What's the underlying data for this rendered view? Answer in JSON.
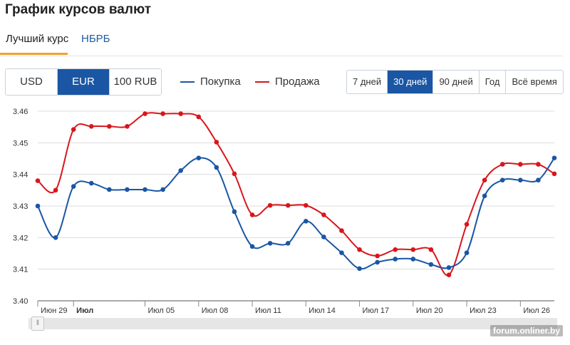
{
  "page": {
    "title": "График курсов валют"
  },
  "tabs": [
    {
      "label": "Лучший курс",
      "active": true
    },
    {
      "label": "НБРБ",
      "active": false
    }
  ],
  "currencies": [
    {
      "label": "USD",
      "active": false
    },
    {
      "label": "EUR",
      "active": true
    },
    {
      "label": "100 RUB",
      "active": false
    }
  ],
  "legend": {
    "buy": "Покупка",
    "sell": "Продажа"
  },
  "periods": [
    {
      "label": "7 дней",
      "active": false
    },
    {
      "label": "30 дней",
      "active": true
    },
    {
      "label": "90 дней",
      "active": false
    },
    {
      "label": "Год",
      "active": false
    },
    {
      "label": "Всё время",
      "active": false
    }
  ],
  "colors": {
    "accent": "#1a56a4",
    "buy": "#1a56a4",
    "sell": "#d9161c",
    "tab_underline": "#f0a030",
    "grid": "#dcdcdc"
  },
  "scroll_handle_icon": "grip-icon",
  "watermark": "forum.onliner.by",
  "chart_data": {
    "type": "line",
    "ylim": [
      3.4,
      3.46
    ],
    "y_ticks": [
      "3.46",
      "3.45",
      "3.44",
      "3.43",
      "3.42",
      "3.41",
      "3.40"
    ],
    "x_ticks": [
      {
        "label": "Июн 29",
        "day": 0,
        "bold": false
      },
      {
        "label": "Июл",
        "day": 2,
        "bold": true
      },
      {
        "label": "Июл 05",
        "day": 6,
        "bold": false
      },
      {
        "label": "Июл 08",
        "day": 9,
        "bold": false
      },
      {
        "label": "Июл 11",
        "day": 12,
        "bold": false
      },
      {
        "label": "Июл 14",
        "day": 15,
        "bold": false
      },
      {
        "label": "Июл 17",
        "day": 18,
        "bold": false
      },
      {
        "label": "Июл 20",
        "day": 21,
        "bold": false
      },
      {
        "label": "Июл 23",
        "day": 24,
        "bold": false
      },
      {
        "label": "Июл 26",
        "day": 27,
        "bold": false
      }
    ],
    "x_range": [
      0,
      28.9
    ],
    "grid": true,
    "series": [
      {
        "name": "Покупка",
        "color": "#1a56a4",
        "points": [
          [
            0,
            3.43
          ],
          [
            1,
            3.42
          ],
          [
            2,
            3.4362
          ],
          [
            3,
            3.4372
          ],
          [
            4,
            3.4352
          ],
          [
            5,
            3.4352
          ],
          [
            6,
            3.4352
          ],
          [
            7,
            3.4352
          ],
          [
            8,
            3.4412
          ],
          [
            9,
            3.4452
          ],
          [
            10,
            3.4422
          ],
          [
            11,
            3.4282
          ],
          [
            12,
            3.4172
          ],
          [
            13,
            3.4182
          ],
          [
            14,
            3.4182
          ],
          [
            15,
            3.4252
          ],
          [
            16,
            3.4202
          ],
          [
            17,
            3.4152
          ],
          [
            18,
            3.4102
          ],
          [
            19,
            3.4122
          ],
          [
            20,
            3.4132
          ],
          [
            21,
            3.4132
          ],
          [
            22,
            3.4115
          ],
          [
            23,
            3.4105
          ],
          [
            24,
            3.4152
          ],
          [
            25,
            3.4332
          ],
          [
            26,
            3.4382
          ],
          [
            27,
            3.4382
          ],
          [
            28,
            3.4382
          ],
          [
            28.9,
            3.4452
          ]
        ]
      },
      {
        "name": "Продажа",
        "color": "#d9161c",
        "points": [
          [
            0,
            3.438
          ],
          [
            1,
            3.435
          ],
          [
            2,
            3.4542
          ],
          [
            3,
            3.4552
          ],
          [
            4,
            3.4552
          ],
          [
            5,
            3.4552
          ],
          [
            6,
            3.4592
          ],
          [
            7,
            3.4592
          ],
          [
            8,
            3.4592
          ],
          [
            9,
            3.4582
          ],
          [
            10,
            3.4502
          ],
          [
            11,
            3.4402
          ],
          [
            12,
            3.4272
          ],
          [
            13,
            3.4302
          ],
          [
            14,
            3.4302
          ],
          [
            15,
            3.4302
          ],
          [
            16,
            3.4272
          ],
          [
            17,
            3.4222
          ],
          [
            18,
            3.4162
          ],
          [
            19,
            3.4142
          ],
          [
            20,
            3.4162
          ],
          [
            21,
            3.4162
          ],
          [
            22,
            3.4162
          ],
          [
            23,
            3.4082
          ],
          [
            24,
            3.4242
          ],
          [
            25,
            3.4382
          ],
          [
            26,
            3.4432
          ],
          [
            27,
            3.4432
          ],
          [
            28,
            3.4432
          ],
          [
            28.9,
            3.4402
          ]
        ]
      }
    ]
  }
}
